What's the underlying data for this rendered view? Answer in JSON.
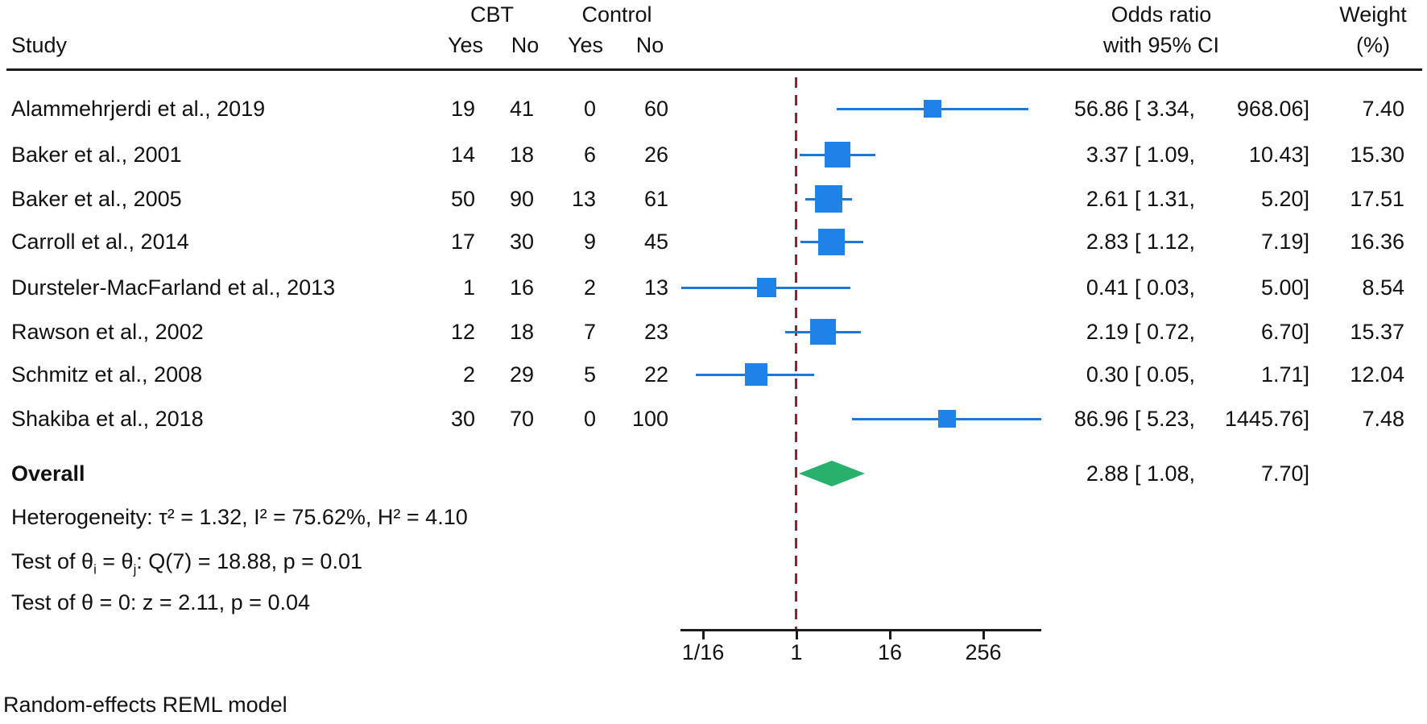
{
  "header": {
    "study": "Study",
    "group1": "CBT",
    "group2": "Control",
    "g1_yes": "Yes",
    "g1_no": "No",
    "g2_yes": "Yes",
    "g2_no": "No",
    "or_line1": "Odds ratio",
    "or_line2": "with 95% CI",
    "weight_line1": "Weight",
    "weight_line2": "(%)"
  },
  "footer": "Random-effects REML model",
  "chart_data": {
    "type": "forest",
    "marker": "square",
    "x_scale": "log2",
    "x_ticks": [
      "1/16",
      "1",
      "16",
      "256"
    ],
    "x_tick_values": [
      0.0625,
      1,
      16,
      256
    ],
    "xlim": [
      0.031,
      1450
    ],
    "null_line": 1,
    "legend": "none",
    "grid": false,
    "columns": [
      "Study",
      "CBT Yes",
      "CBT No",
      "Control Yes",
      "Control No",
      "Odds ratio with 95% CI",
      "Weight (%)"
    ],
    "studies": [
      {
        "name": "Alammehrjerdi et al., 2019",
        "cbt_yes": 19,
        "cbt_no": 41,
        "control_yes": 0,
        "control_no": 60,
        "or": 56.86,
        "ci_low": 3.34,
        "ci_high": 968.06,
        "weight": 7.4,
        "or_label": "56.86 [ 3.34,",
        "ci_high_label": "968.06]",
        "weight_label": "7.40"
      },
      {
        "name": "Baker et al., 2001",
        "cbt_yes": 14,
        "cbt_no": 18,
        "control_yes": 6,
        "control_no": 26,
        "or": 3.37,
        "ci_low": 1.09,
        "ci_high": 10.43,
        "weight": 15.3,
        "or_label": "3.37 [ 1.09,",
        "ci_high_label": "10.43]",
        "weight_label": "15.30"
      },
      {
        "name": "Baker et al., 2005",
        "cbt_yes": 50,
        "cbt_no": 90,
        "control_yes": 13,
        "control_no": 61,
        "or": 2.61,
        "ci_low": 1.31,
        "ci_high": 5.2,
        "weight": 17.51,
        "or_label": "2.61 [ 1.31,",
        "ci_high_label": "5.20]",
        "weight_label": "17.51"
      },
      {
        "name": "Carroll et al., 2014",
        "cbt_yes": 17,
        "cbt_no": 30,
        "control_yes": 9,
        "control_no": 45,
        "or": 2.83,
        "ci_low": 1.12,
        "ci_high": 7.19,
        "weight": 16.36,
        "or_label": "2.83 [ 1.12,",
        "ci_high_label": "7.19]",
        "weight_label": "16.36"
      },
      {
        "name": "Dursteler-MacFarland et al., 2013",
        "cbt_yes": 1,
        "cbt_no": 16,
        "control_yes": 2,
        "control_no": 13,
        "or": 0.41,
        "ci_low": 0.03,
        "ci_high": 5.0,
        "weight": 8.54,
        "or_label": "0.41 [ 0.03,",
        "ci_high_label": "5.00]",
        "weight_label": "8.54"
      },
      {
        "name": "Rawson et al., 2002",
        "cbt_yes": 12,
        "cbt_no": 18,
        "control_yes": 7,
        "control_no": 23,
        "or": 2.19,
        "ci_low": 0.72,
        "ci_high": 6.7,
        "weight": 15.37,
        "or_label": "2.19 [ 0.72,",
        "ci_high_label": "6.70]",
        "weight_label": "15.37"
      },
      {
        "name": "Schmitz et al., 2008",
        "cbt_yes": 2,
        "cbt_no": 29,
        "control_yes": 5,
        "control_no": 22,
        "or": 0.3,
        "ci_low": 0.05,
        "ci_high": 1.71,
        "weight": 12.04,
        "or_label": "0.30 [ 0.05,",
        "ci_high_label": "1.71]",
        "weight_label": "12.04"
      },
      {
        "name": "Shakiba et al., 2018",
        "cbt_yes": 30,
        "cbt_no": 70,
        "control_yes": 0,
        "control_no": 100,
        "or": 86.96,
        "ci_low": 5.23,
        "ci_high": 1445.76,
        "weight": 7.48,
        "or_label": "86.96 [ 5.23,",
        "ci_high_label": "1445.76]",
        "weight_label": "7.48"
      }
    ],
    "overall": {
      "label": "Overall",
      "or": 2.88,
      "ci_low": 1.08,
      "ci_high": 7.7,
      "or_label": "2.88 [ 1.08,",
      "ci_high_label": "7.70]"
    },
    "stats": {
      "heterogeneity": "Heterogeneity: τ² = 1.32, I² = 75.62%, H² = 4.10",
      "test_groups_parts": {
        "p1": "Test of θ",
        "sub1": "i",
        "p2": " = θ",
        "sub2": "j",
        "p3": ": Q(7) = 18.88, p = 0.01"
      },
      "test_overall": "Test of θ = 0: z = 2.11, p = 0.04"
    },
    "colors": {
      "marker": "#1e82e6",
      "ci_line": "#1d78dc",
      "diamond": "#27b16c",
      "null_line": "#8b2438",
      "text": "#111111",
      "axis": "#1a1a1a"
    }
  }
}
